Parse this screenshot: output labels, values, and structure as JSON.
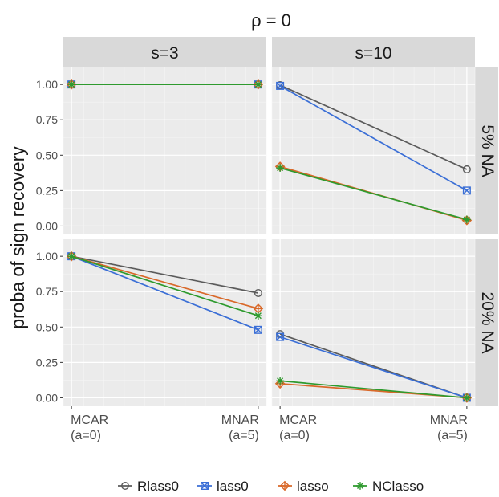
{
  "chart_data": {
    "type": "line",
    "title": "ρ = 0",
    "ylabel": "proba of sign recovery",
    "xlabel": "",
    "x_categories": [
      [
        "MCAR",
        "(a=0)"
      ],
      [
        "MNAR",
        "(a=5)"
      ]
    ],
    "ylim": [
      0,
      1
    ],
    "y_ticks": [
      "0.00",
      "0.25",
      "0.50",
      "0.75",
      "1.00"
    ],
    "grid": true,
    "legend_position": "bottom",
    "facet_columns": [
      "s=3",
      "s=10"
    ],
    "facet_rows": [
      "5% NA",
      "20% NA"
    ],
    "series_styles": [
      {
        "name": "Rlass0",
        "color": "#5b5b5b",
        "marker": "circle"
      },
      {
        "name": "lass0",
        "color": "#3b6fd6",
        "marker": "square-x"
      },
      {
        "name": "lasso",
        "color": "#d9692a",
        "marker": "diamond-plus"
      },
      {
        "name": "NClasso",
        "color": "#2e9a2e",
        "marker": "asterisk"
      }
    ],
    "panels": [
      {
        "col": "s=3",
        "row": "5% NA",
        "series": [
          {
            "name": "Rlass0",
            "values": [
              1.0,
              1.0
            ]
          },
          {
            "name": "lass0",
            "values": [
              1.0,
              1.0
            ]
          },
          {
            "name": "lasso",
            "values": [
              1.0,
              1.0
            ]
          },
          {
            "name": "NClasso",
            "values": [
              1.0,
              1.0
            ]
          }
        ]
      },
      {
        "col": "s=10",
        "row": "5% NA",
        "series": [
          {
            "name": "Rlass0",
            "values": [
              0.995,
              0.4
            ]
          },
          {
            "name": "lass0",
            "values": [
              0.99,
              0.25
            ]
          },
          {
            "name": "lasso",
            "values": [
              0.42,
              0.04
            ]
          },
          {
            "name": "NClasso",
            "values": [
              0.41,
              0.045
            ]
          }
        ]
      },
      {
        "col": "s=3",
        "row": "20% NA",
        "series": [
          {
            "name": "Rlass0",
            "values": [
              1.0,
              0.74
            ]
          },
          {
            "name": "lass0",
            "values": [
              1.0,
              0.48
            ]
          },
          {
            "name": "lasso",
            "values": [
              1.0,
              0.63
            ]
          },
          {
            "name": "NClasso",
            "values": [
              1.0,
              0.58
            ]
          }
        ]
      },
      {
        "col": "s=10",
        "row": "20% NA",
        "series": [
          {
            "name": "Rlass0",
            "values": [
              0.45,
              0.0
            ]
          },
          {
            "name": "lass0",
            "values": [
              0.43,
              0.0
            ]
          },
          {
            "name": "lasso",
            "values": [
              0.1,
              0.0
            ]
          },
          {
            "name": "NClasso",
            "values": [
              0.12,
              0.0
            ]
          }
        ]
      }
    ]
  }
}
